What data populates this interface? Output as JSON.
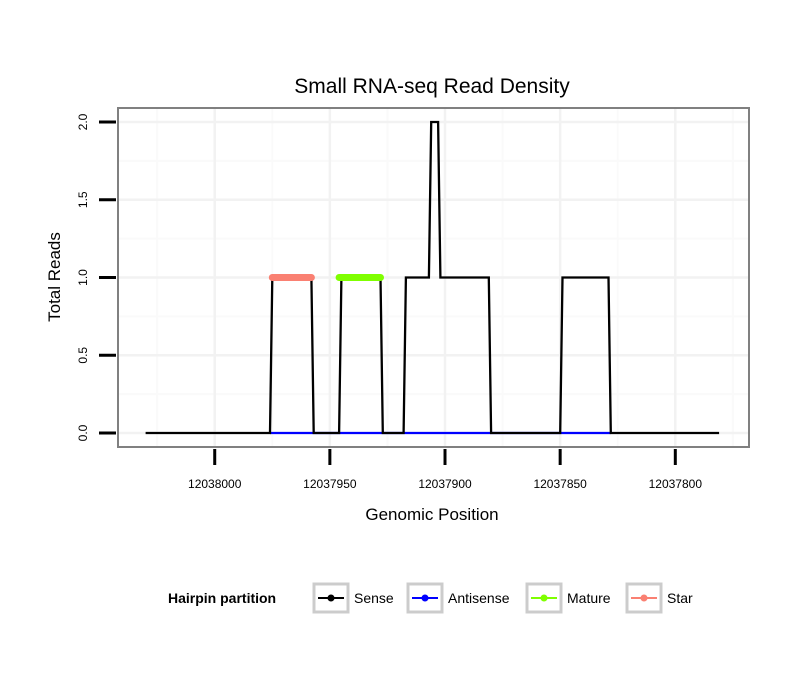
{
  "chart_data": {
    "type": "line",
    "title": "Small RNA-seq Read Density",
    "xlabel": "Genomic Position",
    "ylabel": "Total Reads",
    "x_reversed": true,
    "xlim": [
      12038042,
      12037768
    ],
    "ylim": [
      -0.09,
      2.09
    ],
    "x_ticks": [
      12038000,
      12037950,
      12037900,
      12037850,
      12037800
    ],
    "x_tick_labels": [
      "12038000",
      "12037950",
      "12037900",
      "12037850",
      "12037800"
    ],
    "y_ticks": [
      0.0,
      0.5,
      1.0,
      1.5,
      2.0
    ],
    "y_tick_labels": [
      "0.0",
      "0.5",
      "1.0",
      "1.5",
      "2.0"
    ],
    "grid": true,
    "legend": {
      "title": "Hairpin partition",
      "position": "bottom",
      "entries": [
        {
          "name": "Sense",
          "color": "#000000"
        },
        {
          "name": "Antisense",
          "color": "#0000ff"
        },
        {
          "name": "Mature",
          "color": "#7fff00"
        },
        {
          "name": "Star",
          "color": "#fa8072"
        }
      ]
    },
    "series": [
      {
        "name": "Sense",
        "color": "#000000",
        "x": [
          12038030,
          12037976,
          12037975,
          12037958,
          12037957,
          12037946,
          12037945,
          12037928,
          12037927,
          12037918,
          12037917,
          12037907,
          12037906,
          12037903,
          12037902,
          12037897,
          12037896,
          12037881,
          12037880,
          12037850,
          12037849,
          12037829,
          12037828,
          12037781
        ],
        "values": [
          0,
          0,
          1,
          1,
          0,
          0,
          1,
          1,
          0,
          0,
          1,
          1,
          2,
          2,
          1,
          1,
          1,
          1,
          0,
          0,
          1,
          1,
          0,
          0
        ]
      },
      {
        "name": "Antisense",
        "color": "#0000ff",
        "x": [
          12037976,
          12037880,
          12037850,
          12037828
        ],
        "values": [
          0,
          0,
          0,
          0
        ]
      },
      {
        "name": "Mature",
        "color": "#7fff00",
        "x": [
          12037946,
          12037928
        ],
        "values": [
          1,
          1
        ]
      },
      {
        "name": "Star",
        "color": "#fa8072",
        "x": [
          12037975,
          12037958
        ],
        "values": [
          1,
          1
        ]
      }
    ]
  },
  "colors": {
    "panel_border": "#808080",
    "grid_major": "#f2f2f2",
    "grid_minor": "#fafafa",
    "legend_key_border": "#cccccc"
  }
}
